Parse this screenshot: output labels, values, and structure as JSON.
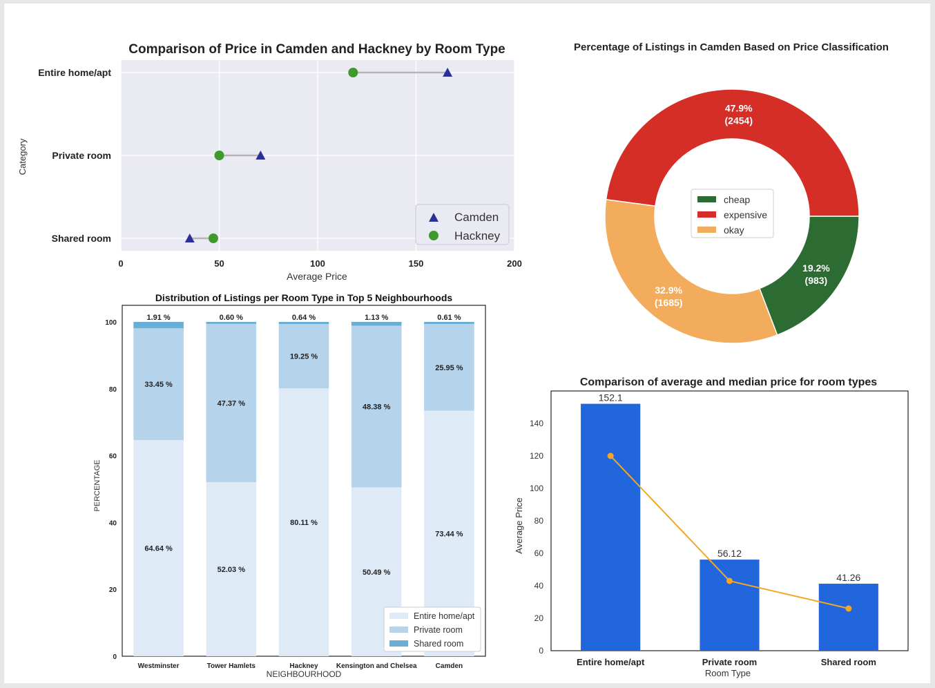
{
  "dumbbell": {
    "title": "Comparison of Price in Camden and Hackney by Room Type",
    "xlabel": "Average Price",
    "ylabel": "Category",
    "xlim": [
      0,
      200
    ],
    "xticks": [
      0,
      50,
      100,
      150,
      200
    ],
    "categories": [
      "Entire home/apt",
      "Private room",
      "Shared room"
    ],
    "series": [
      {
        "name": "Camden",
        "marker": "triangle",
        "color": "#2b2f9a",
        "values": [
          166,
          71,
          35
        ]
      },
      {
        "name": "Hackney",
        "marker": "circle",
        "color": "#3f9a2e",
        "values": [
          118,
          50,
          47
        ]
      }
    ],
    "background": "#eaeaf2",
    "legend": "lower right"
  },
  "donut": {
    "title": "Percentage of Listings in Camden Based on Price Classification",
    "slices": [
      {
        "name": "cheap",
        "percent": 19.2,
        "count": 983,
        "pct_label": "19.2%",
        "count_label": "(983)",
        "color": "#2c6b32"
      },
      {
        "name": "okay",
        "percent": 32.9,
        "count": 1685,
        "pct_label": "32.9%",
        "count_label": "(1685)",
        "color": "#f2ac5c"
      },
      {
        "name": "expensive",
        "percent": 47.9,
        "count": 2454,
        "pct_label": "47.9%",
        "count_label": "(2454)",
        "color": "#d52e27"
      }
    ],
    "legend_order": [
      "cheap",
      "expensive",
      "okay"
    ],
    "legend": "center"
  },
  "stacked": {
    "title": "Distribution of Listings per Room Type in Top 5 Neighbourhoods",
    "xlabel": "NEIGHBOURHOOD",
    "ylabel": "PERCENTAGE",
    "ylim": [
      0,
      100
    ],
    "yticks": [
      0,
      20,
      40,
      60,
      80,
      100
    ],
    "categories": [
      "Westminster",
      "Tower Hamlets",
      "Hackney",
      "Kensington and Chelsea",
      "Camden"
    ],
    "series": [
      {
        "name": "Entire home/apt",
        "color": "#deebf7",
        "values": [
          64.64,
          52.03,
          80.11,
          50.49,
          73.44
        ],
        "labels": [
          "64.64 %",
          "52.03 %",
          "80.11 %",
          "50.49 %",
          "73.44 %"
        ]
      },
      {
        "name": "Private room",
        "color": "#b5d3ea",
        "values": [
          33.45,
          47.37,
          19.25,
          48.38,
          25.95
        ],
        "labels": [
          "33.45 %",
          "47.37 %",
          "19.25 %",
          "48.38 %",
          "25.95 %"
        ]
      },
      {
        "name": "Shared room",
        "color": "#6aaed6",
        "values": [
          1.91,
          0.6,
          0.64,
          1.13,
          0.61
        ],
        "labels": [
          "1.91 %",
          "0.60 %",
          "0.64 %",
          "1.13 %",
          "0.61 %"
        ]
      }
    ],
    "legend": "lower right"
  },
  "avgmed": {
    "title": "Comparison of average and median price for room types",
    "xlabel": "Room Type",
    "ylabel": "Average Price",
    "ylim": [
      0,
      160
    ],
    "yticks": [
      0,
      20,
      40,
      60,
      80,
      100,
      120,
      140
    ],
    "categories": [
      "Entire home/apt",
      "Private room",
      "Shared room"
    ],
    "bar_values": [
      152.1,
      56.12,
      41.26
    ],
    "bar_labels": [
      "152.1",
      "56.12",
      "41.26"
    ],
    "bar_color": "#2266dd",
    "median_values": [
      120,
      43,
      26
    ],
    "median_color": "#f5a623"
  },
  "chart_data": [
    {
      "type": "scatter",
      "title": "Comparison of Price in Camden and Hackney by Room Type",
      "xlabel": "Average Price",
      "ylabel": "Category",
      "categories": [
        "Entire home/apt",
        "Private room",
        "Shared room"
      ],
      "series": [
        {
          "name": "Camden",
          "values": [
            166,
            71,
            35
          ]
        },
        {
          "name": "Hackney",
          "values": [
            118,
            50,
            47
          ]
        }
      ],
      "xlim": [
        0,
        200
      ],
      "grid": true,
      "legend": "lower right"
    },
    {
      "type": "pie",
      "title": "Percentage of Listings in Camden Based on Price Classification",
      "categories": [
        "cheap",
        "okay",
        "expensive"
      ],
      "values": [
        983,
        1685,
        2454
      ],
      "percent": [
        19.2,
        32.9,
        47.9
      ],
      "legend": "center"
    },
    {
      "type": "bar",
      "title": "Distribution of Listings per Room Type in Top 5 Neighbourhoods",
      "xlabel": "NEIGHBOURHOOD",
      "ylabel": "PERCENTAGE",
      "categories": [
        "Westminster",
        "Tower Hamlets",
        "Hackney",
        "Kensington and Chelsea",
        "Camden"
      ],
      "series": [
        {
          "name": "Entire home/apt",
          "values": [
            64.64,
            52.03,
            80.11,
            50.49,
            73.44
          ]
        },
        {
          "name": "Private room",
          "values": [
            33.45,
            47.37,
            19.25,
            48.38,
            25.95
          ]
        },
        {
          "name": "Shared room",
          "values": [
            1.91,
            0.6,
            0.64,
            1.13,
            0.61
          ]
        }
      ],
      "stacked": true,
      "ylim": [
        0,
        100
      ],
      "legend": "lower right"
    },
    {
      "type": "bar",
      "title": "Comparison of average and median price for room types",
      "xlabel": "Room Type",
      "ylabel": "Average Price",
      "categories": [
        "Entire home/apt",
        "Private room",
        "Shared room"
      ],
      "values": [
        152.1,
        56.12,
        41.26
      ],
      "line_values": [
        120,
        43,
        26
      ],
      "ylim": [
        0,
        160
      ]
    }
  ]
}
